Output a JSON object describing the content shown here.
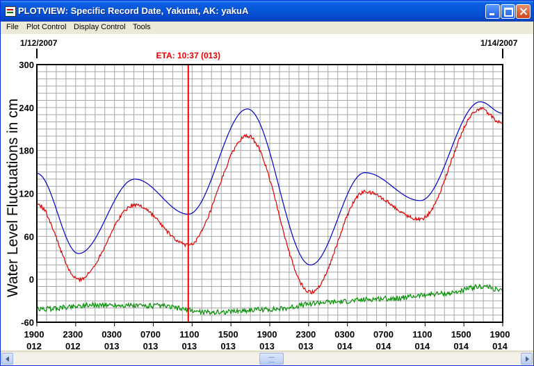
{
  "window": {
    "title": "PLOTVIEW: Specific Record Date, Yakutat, AK: yakuA",
    "icons": [
      "app-icon",
      "minimize-icon",
      "maximize-icon",
      "close-icon"
    ]
  },
  "menu": [
    "File",
    "Plot Control",
    "Display Control",
    "Tools"
  ],
  "plot": {
    "start_date": "1/12/2007",
    "end_date": "1/14/2007",
    "eta_label": "ETA: 10:37 (013)",
    "colors": {
      "grid": "#a8a8a8",
      "predicted": "#0000cc",
      "observed": "#e00000",
      "residual": "#009000",
      "eta": "#ee0000",
      "axis_text": "#000000"
    }
  },
  "chart_data": {
    "type": "line",
    "ylabel": "Water Level Fluctuations in cm",
    "ylim": [
      -60,
      300
    ],
    "yticks": [
      "300",
      "240",
      "180",
      "120",
      "60",
      "0",
      "-60"
    ],
    "x_hours_range": [
      0,
      48
    ],
    "x_ticks": [
      {
        "time": "1900",
        "day": "012"
      },
      {
        "time": "2300",
        "day": "012"
      },
      {
        "time": "0300",
        "day": "013"
      },
      {
        "time": "0700",
        "day": "013"
      },
      {
        "time": "1100",
        "day": "013"
      },
      {
        "time": "1500",
        "day": "013"
      },
      {
        "time": "1900",
        "day": "013"
      },
      {
        "time": "2300",
        "day": "013"
      },
      {
        "time": "0300",
        "day": "014"
      },
      {
        "time": "0700",
        "day": "014"
      },
      {
        "time": "1100",
        "day": "014"
      },
      {
        "time": "1500",
        "day": "014"
      },
      {
        "time": "1900",
        "day": "014"
      }
    ],
    "eta_hour": 15.6,
    "grid": true,
    "series": [
      {
        "key": "predicted",
        "x": [
          0,
          4.3,
          10.1,
          15.6,
          21.7,
          28.2,
          33.8,
          39.5,
          45.7,
          48
        ],
        "y": [
          148,
          36,
          140,
          91,
          238,
          20,
          149,
          110,
          248,
          232
        ]
      },
      {
        "key": "observed",
        "x": [
          0,
          4.3,
          10.1,
          15.6,
          21.7,
          28.2,
          33.8,
          39.5,
          45.7,
          48
        ],
        "y": [
          105,
          0,
          104,
          48,
          200,
          -18,
          122,
          84,
          238,
          218
        ]
      },
      {
        "key": "residual",
        "x": [
          0,
          6,
          12,
          18,
          24,
          30,
          36,
          42,
          46,
          48
        ],
        "y": [
          -42,
          -36,
          -37,
          -46,
          -42,
          -32,
          -27,
          -20,
          -10,
          -16
        ]
      }
    ]
  }
}
